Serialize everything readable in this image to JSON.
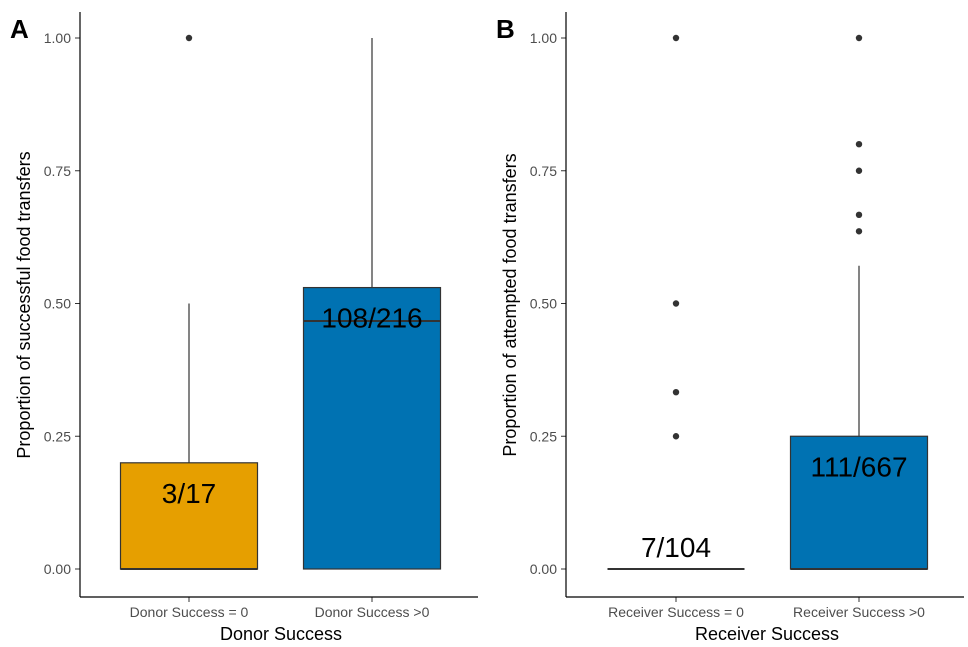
{
  "chart_data": [
    {
      "type": "box",
      "panel_label": "A",
      "xlabel": "Donor Success",
      "ylabel": "Proportion of successful food transfers",
      "ylim": [
        0,
        1.05
      ],
      "yticks": [
        "0.00",
        "0.25",
        "0.50",
        "0.75",
        "1.00"
      ],
      "ytick_values": [
        0,
        0.25,
        0.5,
        0.75,
        1.0
      ],
      "grid": false,
      "categories": [
        "Donor Success = 0",
        "Donor Success >0"
      ],
      "boxes": [
        {
          "category": "Donor Success = 0",
          "whisker_low": 0.0,
          "q1": 0.0,
          "median": 0.0,
          "q3": 0.2,
          "whisker_high": 0.5,
          "outliers": [
            1.0
          ],
          "annotation": "3/17",
          "color": "#E69F00"
        },
        {
          "category": "Donor Success >0",
          "whisker_low": 0.0,
          "q1": 0.0,
          "median": 0.467,
          "q3": 0.53,
          "whisker_high": 1.0,
          "outliers": [],
          "annotation": "108/216",
          "color": "#0072B2"
        }
      ]
    },
    {
      "type": "box",
      "panel_label": "B",
      "xlabel": "Receiver Success",
      "ylabel": "Proportion of attempted food transfers",
      "ylim": [
        0,
        1.05
      ],
      "yticks": [
        "0.00",
        "0.25",
        "0.50",
        "0.75",
        "1.00"
      ],
      "ytick_values": [
        0,
        0.25,
        0.5,
        0.75,
        1.0
      ],
      "grid": false,
      "categories": [
        "Receiver Success = 0",
        "Receiver Success >0"
      ],
      "boxes": [
        {
          "category": "Receiver Success = 0",
          "whisker_low": 0.0,
          "q1": 0.0,
          "median": 0.0,
          "q3": 0.0,
          "whisker_high": 0.0,
          "outliers": [
            0.25,
            0.333,
            0.5,
            1.0
          ],
          "annotation": "7/104",
          "color": "#E69F00"
        },
        {
          "category": "Receiver Success >0",
          "whisker_low": 0.0,
          "q1": 0.0,
          "median": 0.0,
          "q3": 0.25,
          "whisker_high": 0.571,
          "outliers": [
            0.636,
            0.667,
            0.75,
            0.8,
            1.0
          ],
          "annotation": "111/667",
          "color": "#0072B2"
        }
      ]
    }
  ]
}
